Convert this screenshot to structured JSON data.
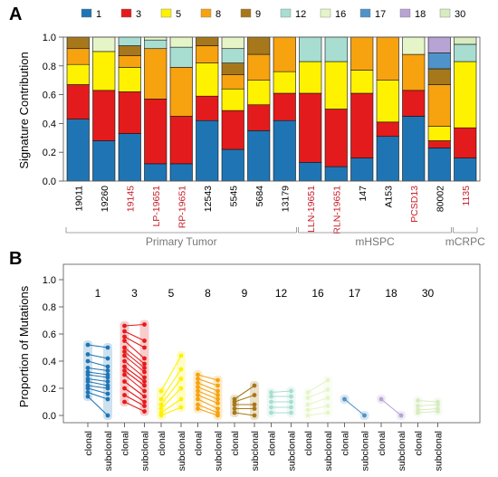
{
  "panel_a": {
    "letter": "A",
    "ylabel": "Signature Contribution",
    "yticks": [
      "0.0",
      "0.2",
      "0.4",
      "0.6",
      "0.8",
      "1.0"
    ],
    "groups": [
      {
        "label": "Primary Tumor",
        "from": 0,
        "to": 8
      },
      {
        "label": "mHSPC",
        "from": 9,
        "to": 14
      },
      {
        "label": "mCRPC",
        "from": 15,
        "to": 15
      }
    ]
  },
  "panel_b": {
    "letter": "B",
    "ylabel": "Proportion of Mutations",
    "yticks": [
      "0.0",
      "0.2",
      "0.4",
      "0.6",
      "0.8",
      "1.0"
    ],
    "clonal_label": "clonal",
    "subclonal_label": "subclonal"
  },
  "chart_data": [
    {
      "type": "bar",
      "stacked": true,
      "ylabel": "Signature Contribution",
      "ylim": [
        0,
        1
      ],
      "legend_position": "top",
      "categories": [
        "19011",
        "19260",
        "19145",
        "LP-19651",
        "RP-19651",
        "12543",
        "5545",
        "5684",
        "13179",
        "LLN-19651",
        "RLN-19651",
        "147",
        "A153",
        "PCSD13",
        "80002",
        "1135"
      ],
      "category_colors": [
        "#000000",
        "#000000",
        "#c8202a",
        "#c8202a",
        "#c8202a",
        "#000000",
        "#000000",
        "#000000",
        "#000000",
        "#c8202a",
        "#c8202a",
        "#000000",
        "#000000",
        "#c8202a",
        "#000000",
        "#c8202a"
      ],
      "series": [
        {
          "name": "1",
          "color": "#1f75b4",
          "values": [
            0.43,
            0.28,
            0.33,
            0.12,
            0.12,
            0.42,
            0.22,
            0.35,
            0.42,
            0.13,
            0.1,
            0.16,
            0.31,
            0.45,
            0.23,
            0.16
          ]
        },
        {
          "name": "3",
          "color": "#e41b1c",
          "values": [
            0.24,
            0.35,
            0.29,
            0.45,
            0.33,
            0.17,
            0.27,
            0.18,
            0.19,
            0.48,
            0.4,
            0.45,
            0.1,
            0.18,
            0.05,
            0.21
          ]
        },
        {
          "name": "5",
          "color": "#fef200",
          "values": [
            0.14,
            0.27,
            0.17,
            0.0,
            0.0,
            0.23,
            0.15,
            0.17,
            0.15,
            0.22,
            0.33,
            0.16,
            0.29,
            0.0,
            0.1,
            0.46
          ]
        },
        {
          "name": "8",
          "color": "#f7a20f",
          "values": [
            0.11,
            0.0,
            0.08,
            0.35,
            0.34,
            0.12,
            0.1,
            0.18,
            0.24,
            0.0,
            0.0,
            0.23,
            0.3,
            0.25,
            0.29,
            0.0
          ]
        },
        {
          "name": "9",
          "color": "#a6781b",
          "values": [
            0.08,
            0.0,
            0.07,
            0.0,
            0.0,
            0.06,
            0.08,
            0.12,
            0.0,
            0.0,
            0.0,
            0.0,
            0.0,
            0.0,
            0.11,
            0.0
          ]
        },
        {
          "name": "12",
          "color": "#a8ded1",
          "values": [
            0.0,
            0.0,
            0.06,
            0.06,
            0.14,
            0.0,
            0.1,
            0.0,
            0.0,
            0.17,
            0.17,
            0.0,
            0.0,
            0.0,
            0.0,
            0.12
          ]
        },
        {
          "name": "16",
          "color": "#e6f5c8",
          "values": [
            0.0,
            0.1,
            0.0,
            0.02,
            0.07,
            0.0,
            0.08,
            0.0,
            0.0,
            0.0,
            0.0,
            0.0,
            0.0,
            0.12,
            0.0,
            0.0
          ]
        },
        {
          "name": "17",
          "color": "#4f93c9",
          "values": [
            0.0,
            0.0,
            0.0,
            0.0,
            0.0,
            0.0,
            0.0,
            0.0,
            0.0,
            0.0,
            0.0,
            0.0,
            0.0,
            0.0,
            0.11,
            0.0
          ]
        },
        {
          "name": "18",
          "color": "#b7a3d4",
          "values": [
            0.0,
            0.0,
            0.0,
            0.0,
            0.0,
            0.0,
            0.0,
            0.0,
            0.0,
            0.0,
            0.0,
            0.0,
            0.0,
            0.0,
            0.11,
            0.0
          ]
        },
        {
          "name": "30",
          "color": "#d8ecc0",
          "values": [
            0.0,
            0.0,
            0.0,
            0.0,
            0.0,
            0.0,
            0.0,
            0.0,
            0.0,
            0.0,
            0.0,
            0.0,
            0.0,
            0.0,
            0.0,
            0.05
          ]
        }
      ]
    },
    {
      "type": "scatter",
      "ylabel": "Proportion of Mutations",
      "ylim": [
        0,
        1
      ],
      "x_labels": [
        "clonal",
        "subclonal"
      ],
      "signatures": [
        {
          "name": "1",
          "color": "#1f75b4",
          "pairs": [
            [
              0.52,
              0.5
            ],
            [
              0.45,
              0.42
            ],
            [
              0.4,
              0.36
            ],
            [
              0.35,
              0.33
            ],
            [
              0.32,
              0.3
            ],
            [
              0.3,
              0.28
            ],
            [
              0.27,
              0.25
            ],
            [
              0.25,
              0.22
            ],
            [
              0.22,
              0.2
            ],
            [
              0.2,
              0.16
            ],
            [
              0.17,
              0.12
            ],
            [
              0.14,
              0.0
            ]
          ]
        },
        {
          "name": "3",
          "color": "#e41b1c",
          "pairs": [
            [
              0.66,
              0.67
            ],
            [
              0.62,
              0.55
            ],
            [
              0.58,
              0.5
            ],
            [
              0.55,
              0.42
            ],
            [
              0.5,
              0.38
            ],
            [
              0.47,
              0.35
            ],
            [
              0.44,
              0.32
            ],
            [
              0.4,
              0.28
            ],
            [
              0.36,
              0.25
            ],
            [
              0.33,
              0.22
            ],
            [
              0.3,
              0.18
            ],
            [
              0.25,
              0.14
            ],
            [
              0.2,
              0.1
            ],
            [
              0.15,
              0.07
            ],
            [
              0.1,
              0.03
            ]
          ]
        },
        {
          "name": "5",
          "color": "#fef200",
          "pairs": [
            [
              0.18,
              0.44
            ],
            [
              0.12,
              0.34
            ],
            [
              0.08,
              0.27
            ],
            [
              0.05,
              0.2
            ],
            [
              0.02,
              0.12
            ],
            [
              0.0,
              0.06
            ]
          ]
        },
        {
          "name": "8",
          "color": "#f7a20f",
          "pairs": [
            [
              0.3,
              0.26
            ],
            [
              0.27,
              0.22
            ],
            [
              0.24,
              0.18
            ],
            [
              0.21,
              0.15
            ],
            [
              0.18,
              0.12
            ],
            [
              0.15,
              0.09
            ],
            [
              0.12,
              0.05
            ],
            [
              0.08,
              0.02
            ],
            [
              0.05,
              0.0
            ]
          ]
        },
        {
          "name": "9",
          "color": "#a6781b",
          "pairs": [
            [
              0.12,
              0.22
            ],
            [
              0.1,
              0.15
            ],
            [
              0.08,
              0.08
            ],
            [
              0.05,
              0.05
            ],
            [
              0.02,
              0.0
            ]
          ]
        },
        {
          "name": "12",
          "color": "#a8ded1",
          "pairs": [
            [
              0.17,
              0.18
            ],
            [
              0.14,
              0.14
            ],
            [
              0.1,
              0.1
            ],
            [
              0.06,
              0.06
            ],
            [
              0.02,
              0.02
            ]
          ]
        },
        {
          "name": "16",
          "color": "#e6f5c8",
          "pairs": [
            [
              0.17,
              0.26
            ],
            [
              0.13,
              0.19
            ],
            [
              0.08,
              0.13
            ],
            [
              0.04,
              0.07
            ],
            [
              0.0,
              0.02
            ]
          ]
        },
        {
          "name": "17",
          "color": "#4f93c9",
          "pairs": [
            [
              0.12,
              0.0
            ]
          ]
        },
        {
          "name": "18",
          "color": "#b7a3d4",
          "pairs": [
            [
              0.12,
              0.0
            ]
          ]
        },
        {
          "name": "30",
          "color": "#d8ecc0",
          "pairs": [
            [
              0.11,
              0.1
            ],
            [
              0.07,
              0.08
            ],
            [
              0.04,
              0.05
            ],
            [
              0.02,
              0.03
            ]
          ]
        }
      ]
    }
  ]
}
